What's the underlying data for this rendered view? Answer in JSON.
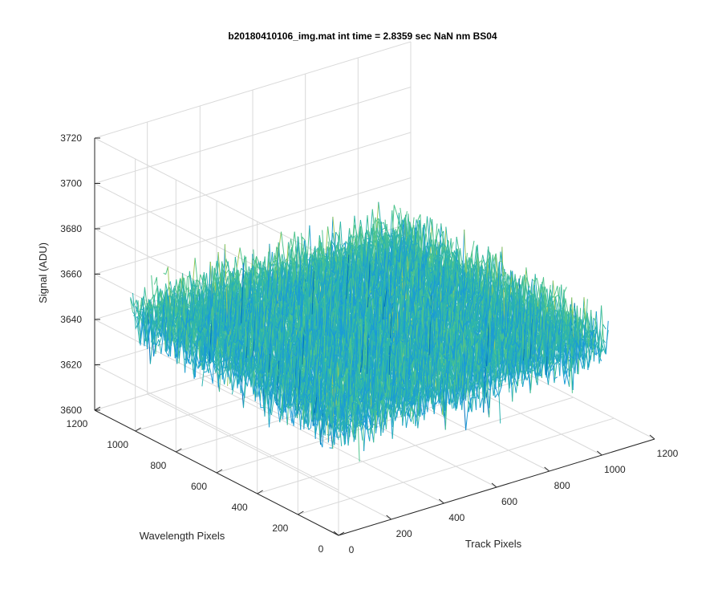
{
  "chart_data": {
    "type": "surface3d",
    "title": "b20180410106_img.mat int time = 2.8359 sec  NaN nm BS04",
    "xlabel": "Track Pixels",
    "ylabel": "Wavelength Pixels",
    "zlabel": "Signal (ADU)",
    "xlim": [
      0,
      1200
    ],
    "ylim": [
      0,
      1200
    ],
    "zlim": [
      3600,
      3720
    ],
    "x_ticks": [
      "0",
      "200",
      "400",
      "600",
      "800",
      "1000",
      "1200"
    ],
    "y_ticks": [
      "0",
      "200",
      "400",
      "600",
      "800",
      "1000",
      "1200"
    ],
    "z_ticks": [
      "3600",
      "3620",
      "3640",
      "3660",
      "3680",
      "3700",
      "3720"
    ],
    "data_extent": {
      "x": [
        0,
        1024
      ],
      "y": [
        0,
        1024
      ]
    },
    "signal_mean": 3650,
    "signal_min": 3620,
    "signal_max": 3690,
    "grid": true,
    "colormap": [
      "#0072bd",
      "#1a9bd6",
      "#2bb3b0",
      "#4ec48c",
      "#9dc85a",
      "#d9b53a"
    ]
  }
}
